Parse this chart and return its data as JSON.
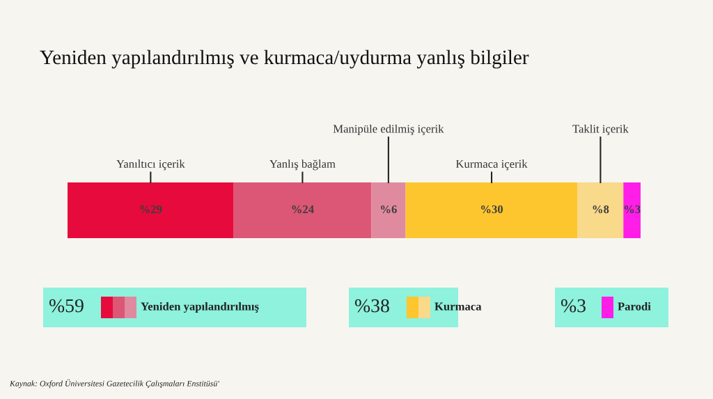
{
  "chart_data": {
    "type": "bar",
    "orientation": "horizontal",
    "stacked": true,
    "title": "Yeniden yapılandırılmış ve kurmaca/uydurma yanlış bilgiler",
    "categories": [
      null
    ],
    "series": [
      {
        "name": "Yanıltıcı içerik",
        "color": "#e60b3c",
        "values": [
          29
        ],
        "value_labels": [
          "%29"
        ]
      },
      {
        "name": "Yanlış bağlam",
        "color": "#dc5675",
        "values": [
          24
        ],
        "value_labels": [
          "%24"
        ]
      },
      {
        "name": "Manipüle edilmiş içerik",
        "color": "#e08aa0",
        "values": [
          6
        ],
        "value_labels": [
          "%6"
        ]
      },
      {
        "name": "Kurmaca içerik",
        "color": "#fec62e",
        "values": [
          30
        ],
        "value_labels": [
          "%30"
        ]
      },
      {
        "name": "Taklit içerik",
        "color": "#f9d98a",
        "values": [
          8
        ],
        "value_labels": [
          "%8"
        ]
      },
      {
        "color": "#ff1ee8",
        "values": [
          3
        ],
        "value_labels": [
          "%3"
        ]
      }
    ],
    "annotations": [
      "%59",
      "Yeniden yapılandırılmış",
      "%38",
      "Kurmaca",
      "%3",
      "Parodi",
      "Kaynak: Oxford Üniversitesi Gazetecilik Çalışmaları Enstitüsü'"
    ],
    "legend": false
  }
}
